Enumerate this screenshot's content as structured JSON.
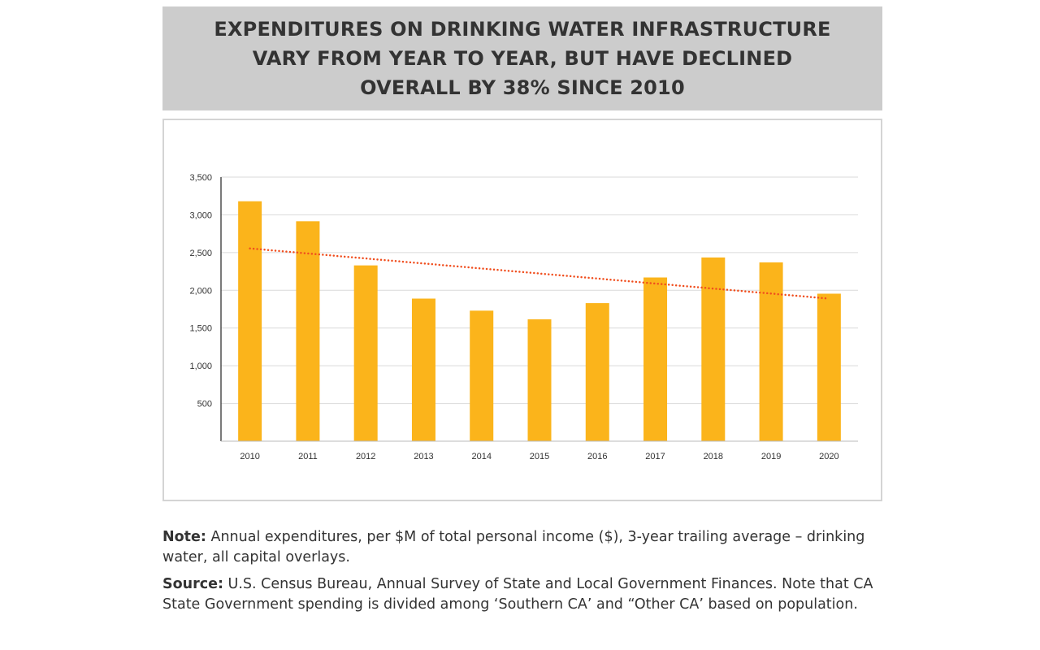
{
  "banner": {
    "title": "EXPENDITURES ON DRINKING WATER INFRASTRUCTURE\nVARY FROM YEAR TO YEAR, BUT HAVE DECLINED\nOVERALL BY 38% SINCE 2010"
  },
  "chart_data": {
    "type": "bar",
    "categories": [
      "2010",
      "2011",
      "2012",
      "2013",
      "2014",
      "2015",
      "2016",
      "2017",
      "2018",
      "2019",
      "2020"
    ],
    "values": [
      3180,
      2915,
      2330,
      1890,
      1730,
      1615,
      1830,
      2170,
      2435,
      2370,
      1955
    ],
    "ylim": [
      0,
      3500
    ],
    "yticks": [
      500,
      1000,
      1500,
      2000,
      2500,
      3000,
      3500
    ],
    "ytick_labels": [
      "500",
      "1,000",
      "1,500",
      "2,000",
      "2,500",
      "3,000",
      "3,500"
    ],
    "grid": true,
    "trendline": {
      "style": "dotted",
      "start": 2555,
      "end": 1890
    },
    "colors": {
      "bar": "#FBB41B",
      "trendline": "#F04E1E",
      "grid": "#DADADA",
      "axis": "#333333"
    }
  },
  "notes": {
    "note_label": "Note:",
    "note_text": " Annual expenditures, per $M of total personal income ($), 3-year trailing average – drinking water, all capital overlays.",
    "source_label": "Source:",
    "source_text": " U.S. Census Bureau, Annual Survey of State and Local Government Finances. Note that CA State Government spending is divided among ‘Southern CA’ and “Other CA’ based on population."
  }
}
